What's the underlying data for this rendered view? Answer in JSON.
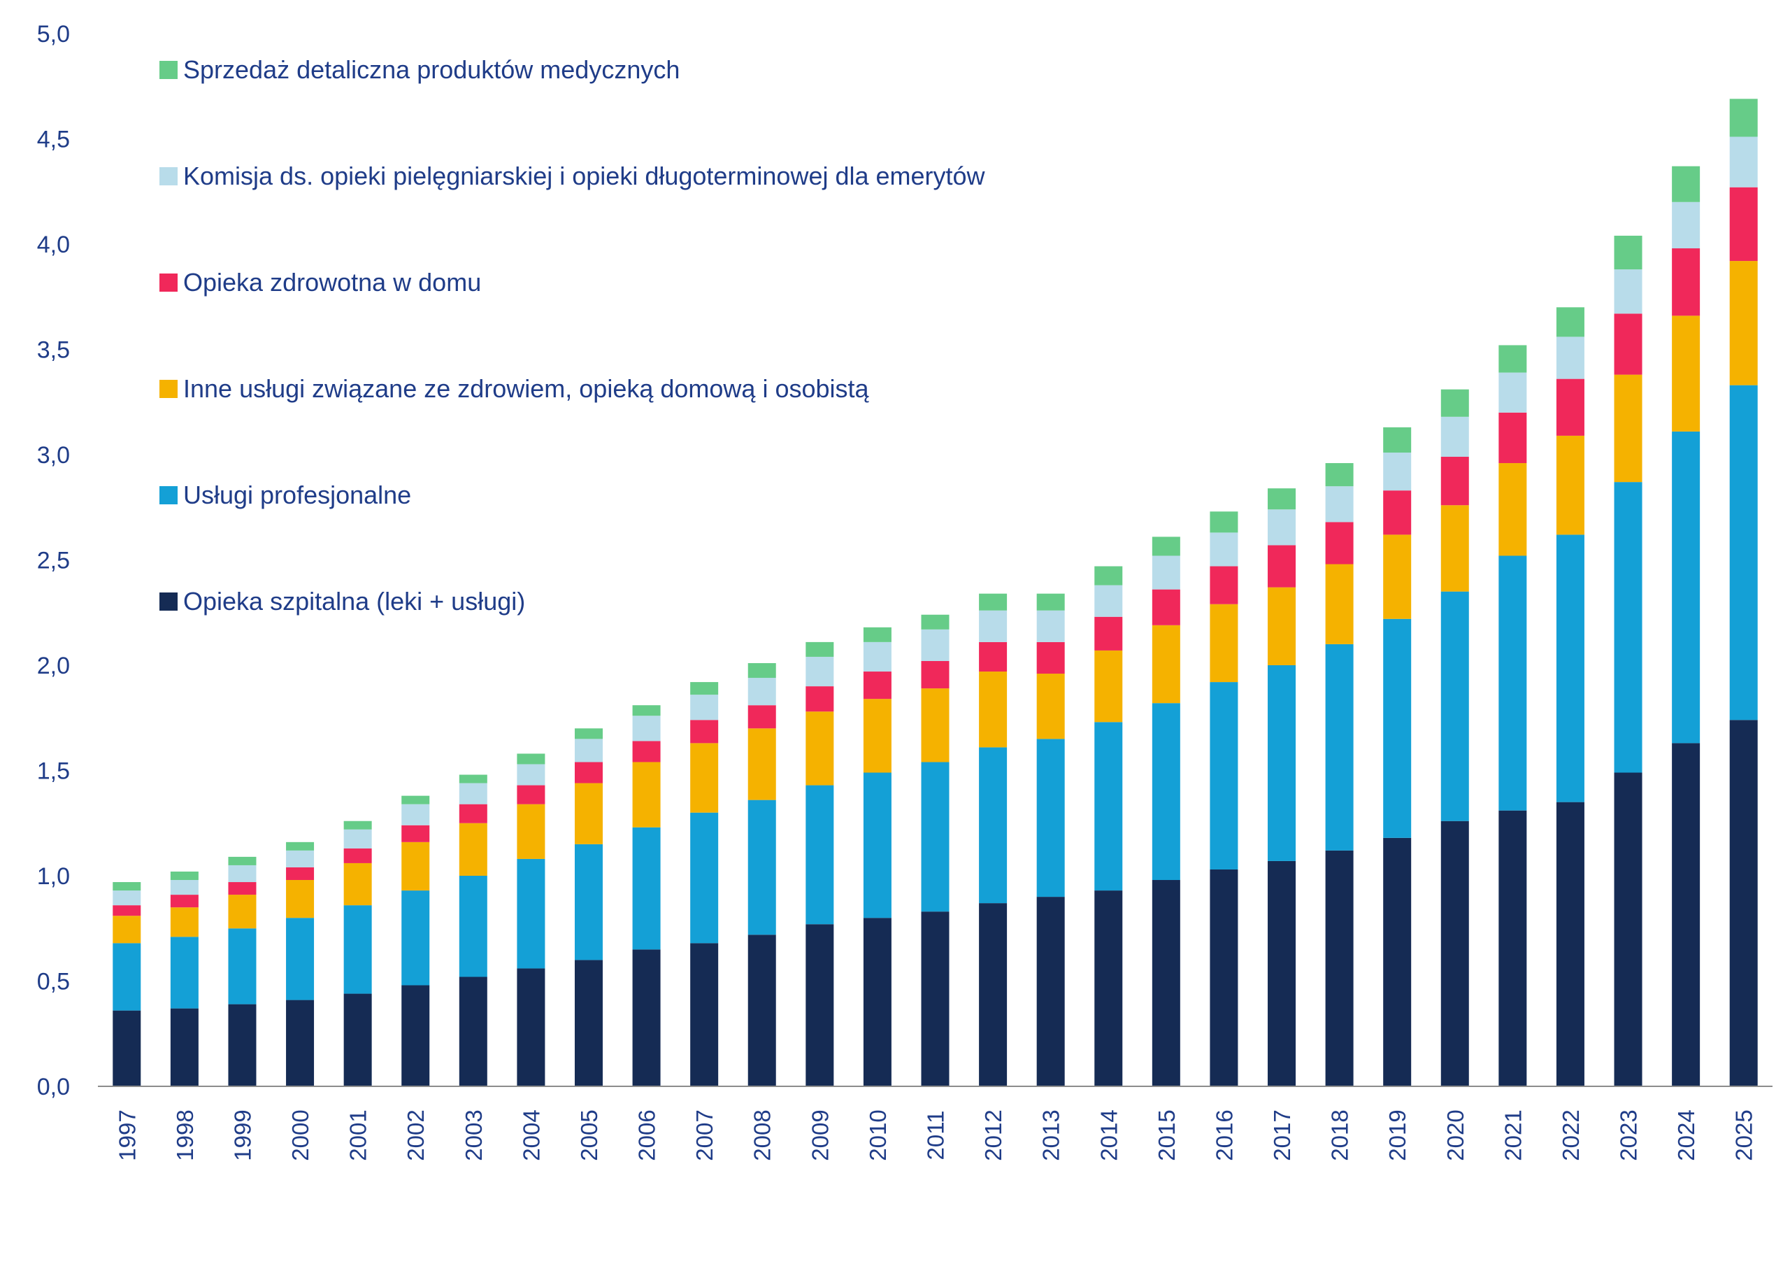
{
  "chart_data": {
    "type": "bar",
    "stacked": true,
    "title": "",
    "xlabel": "",
    "ylabel": "",
    "ylim": [
      0,
      5
    ],
    "y_ticks": [
      "0,0",
      "0,5",
      "1,0",
      "1,5",
      "2,0",
      "2,5",
      "3,0",
      "3,5",
      "4,0",
      "4,5",
      "5,0"
    ],
    "grid": false,
    "legend_placement": "top-left",
    "categories": [
      "1997",
      "1998",
      "1999",
      "2000",
      "2001",
      "2002",
      "2003",
      "2004",
      "2005",
      "2006",
      "2007",
      "2008",
      "2009",
      "2010",
      "2011",
      "2012",
      "2013",
      "2014",
      "2015",
      "2016",
      "2017",
      "2018",
      "2019",
      "2020",
      "2021",
      "2022",
      "2023",
      "2024",
      "2025"
    ],
    "series": [
      {
        "name": "Opieka szpitalna (leki + usługi)",
        "color": "#152b54",
        "values": [
          0.36,
          0.37,
          0.39,
          0.41,
          0.44,
          0.48,
          0.52,
          0.56,
          0.6,
          0.65,
          0.68,
          0.72,
          0.77,
          0.8,
          0.83,
          0.87,
          0.9,
          0.93,
          0.98,
          1.03,
          1.07,
          1.12,
          1.18,
          1.26,
          1.31,
          1.35,
          1.49,
          1.63,
          1.74
        ]
      },
      {
        "name": "Usługi profesjonalne",
        "color": "#14a0d6",
        "values": [
          0.32,
          0.34,
          0.36,
          0.39,
          0.42,
          0.45,
          0.48,
          0.52,
          0.55,
          0.58,
          0.62,
          0.64,
          0.66,
          0.69,
          0.71,
          0.74,
          0.75,
          0.8,
          0.84,
          0.89,
          0.93,
          0.98,
          1.04,
          1.09,
          1.21,
          1.27,
          1.38,
          1.48,
          1.59
        ]
      },
      {
        "name": "Inne usługi związane ze zdrowiem, opieką domową i osobistą",
        "color": "#f5b200",
        "values": [
          0.13,
          0.14,
          0.16,
          0.18,
          0.2,
          0.23,
          0.25,
          0.26,
          0.29,
          0.31,
          0.33,
          0.34,
          0.35,
          0.35,
          0.35,
          0.36,
          0.31,
          0.34,
          0.37,
          0.37,
          0.37,
          0.38,
          0.4,
          0.41,
          0.44,
          0.47,
          0.51,
          0.55,
          0.59
        ]
      },
      {
        "name": "Opieka zdrowotna w domu",
        "color": "#f0285a",
        "values": [
          0.05,
          0.06,
          0.06,
          0.06,
          0.07,
          0.08,
          0.09,
          0.09,
          0.1,
          0.1,
          0.11,
          0.11,
          0.12,
          0.13,
          0.13,
          0.14,
          0.15,
          0.16,
          0.17,
          0.18,
          0.2,
          0.2,
          0.21,
          0.23,
          0.24,
          0.27,
          0.29,
          0.32,
          0.35
        ]
      },
      {
        "name": "Komisja ds. opieki pielęgniarskiej i opieki długoterminowej dla emerytów",
        "color": "#b8dcea",
        "values": [
          0.07,
          0.07,
          0.08,
          0.08,
          0.09,
          0.1,
          0.1,
          0.1,
          0.11,
          0.12,
          0.12,
          0.13,
          0.14,
          0.14,
          0.15,
          0.15,
          0.15,
          0.15,
          0.16,
          0.16,
          0.17,
          0.17,
          0.18,
          0.19,
          0.19,
          0.2,
          0.21,
          0.22,
          0.24
        ]
      },
      {
        "name": "Sprzedaż detaliczna produktów medycznych",
        "color": "#66cc88",
        "values": [
          0.04,
          0.04,
          0.04,
          0.04,
          0.04,
          0.04,
          0.04,
          0.05,
          0.05,
          0.05,
          0.06,
          0.07,
          0.07,
          0.07,
          0.07,
          0.08,
          0.08,
          0.09,
          0.09,
          0.1,
          0.1,
          0.11,
          0.12,
          0.13,
          0.13,
          0.14,
          0.16,
          0.17,
          0.18
        ]
      }
    ]
  }
}
